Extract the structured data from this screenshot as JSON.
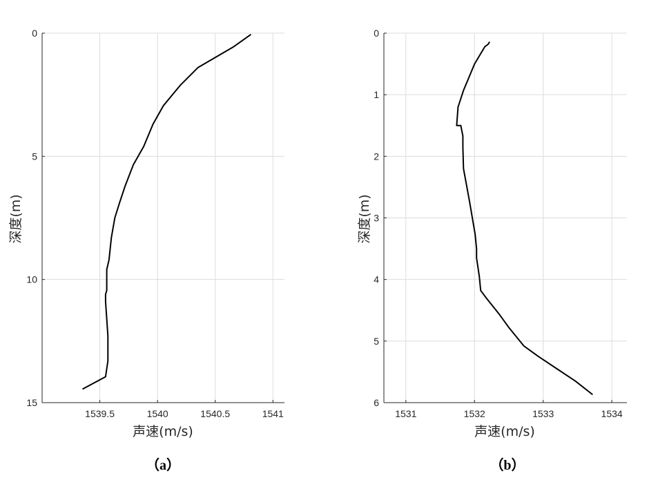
{
  "chart_data": [
    {
      "type": "line",
      "panel_label": "（a）",
      "xlabel": "声速(m/s)",
      "ylabel": "深度(m)",
      "xlim": [
        1539.0,
        1541.1
      ],
      "ylim": [
        15,
        0
      ],
      "y_reversed": true,
      "xticks": [
        1539.5,
        1540,
        1540.5,
        1541
      ],
      "xtick_labels": [
        "1539.5",
        "1540",
        "1540.5",
        "1541"
      ],
      "yticks": [
        0,
        5,
        10,
        15
      ],
      "ytick_labels": [
        "0",
        "5",
        "10",
        "15"
      ],
      "grid": true,
      "line_color": "#000000",
      "x": [
        1540.81,
        1540.66,
        1540.35,
        1540.2,
        1540.05,
        1539.96,
        1539.88,
        1539.79,
        1539.72,
        1539.67,
        1539.63,
        1539.6,
        1539.58,
        1539.56,
        1539.56,
        1539.56,
        1539.55,
        1539.55,
        1539.56,
        1539.57,
        1539.57,
        1539.55,
        1539.35
      ],
      "y": [
        0.05,
        0.55,
        1.4,
        2.1,
        2.95,
        3.7,
        4.6,
        5.35,
        6.2,
        6.9,
        7.5,
        8.3,
        9.2,
        9.6,
        10.0,
        10.45,
        10.6,
        10.9,
        11.6,
        12.3,
        13.3,
        13.95,
        14.45
      ]
    },
    {
      "type": "line",
      "panel_label": "（b）",
      "xlabel": "声速(m/s)",
      "ylabel": "深度(m)",
      "xlim": [
        1530.68,
        1534.22
      ],
      "ylim": [
        6,
        0
      ],
      "y_reversed": true,
      "xticks": [
        1531,
        1532,
        1533,
        1534
      ],
      "xtick_labels": [
        "1531",
        "1532",
        "1533",
        "1534"
      ],
      "yticks": [
        0,
        1,
        2,
        3,
        4,
        5,
        6
      ],
      "ytick_labels": [
        "0",
        "1",
        "2",
        "3",
        "4",
        "5",
        "6"
      ],
      "grid": true,
      "line_color": "#000000",
      "x": [
        1532.22,
        1532.2,
        1532.15,
        1532.0,
        1531.84,
        1531.76,
        1531.74,
        1531.8,
        1531.83,
        1531.83,
        1531.84,
        1531.93,
        1532.01,
        1532.03,
        1532.03,
        1532.07,
        1532.09,
        1532.17,
        1532.35,
        1532.5,
        1532.72,
        1532.93,
        1533.2,
        1533.47,
        1533.72
      ],
      "y": [
        0.14,
        0.18,
        0.22,
        0.5,
        0.93,
        1.2,
        1.5,
        1.5,
        1.67,
        1.85,
        2.2,
        2.75,
        3.27,
        3.5,
        3.65,
        3.95,
        4.18,
        4.3,
        4.55,
        4.78,
        5.08,
        5.25,
        5.45,
        5.65,
        5.87
      ]
    }
  ]
}
